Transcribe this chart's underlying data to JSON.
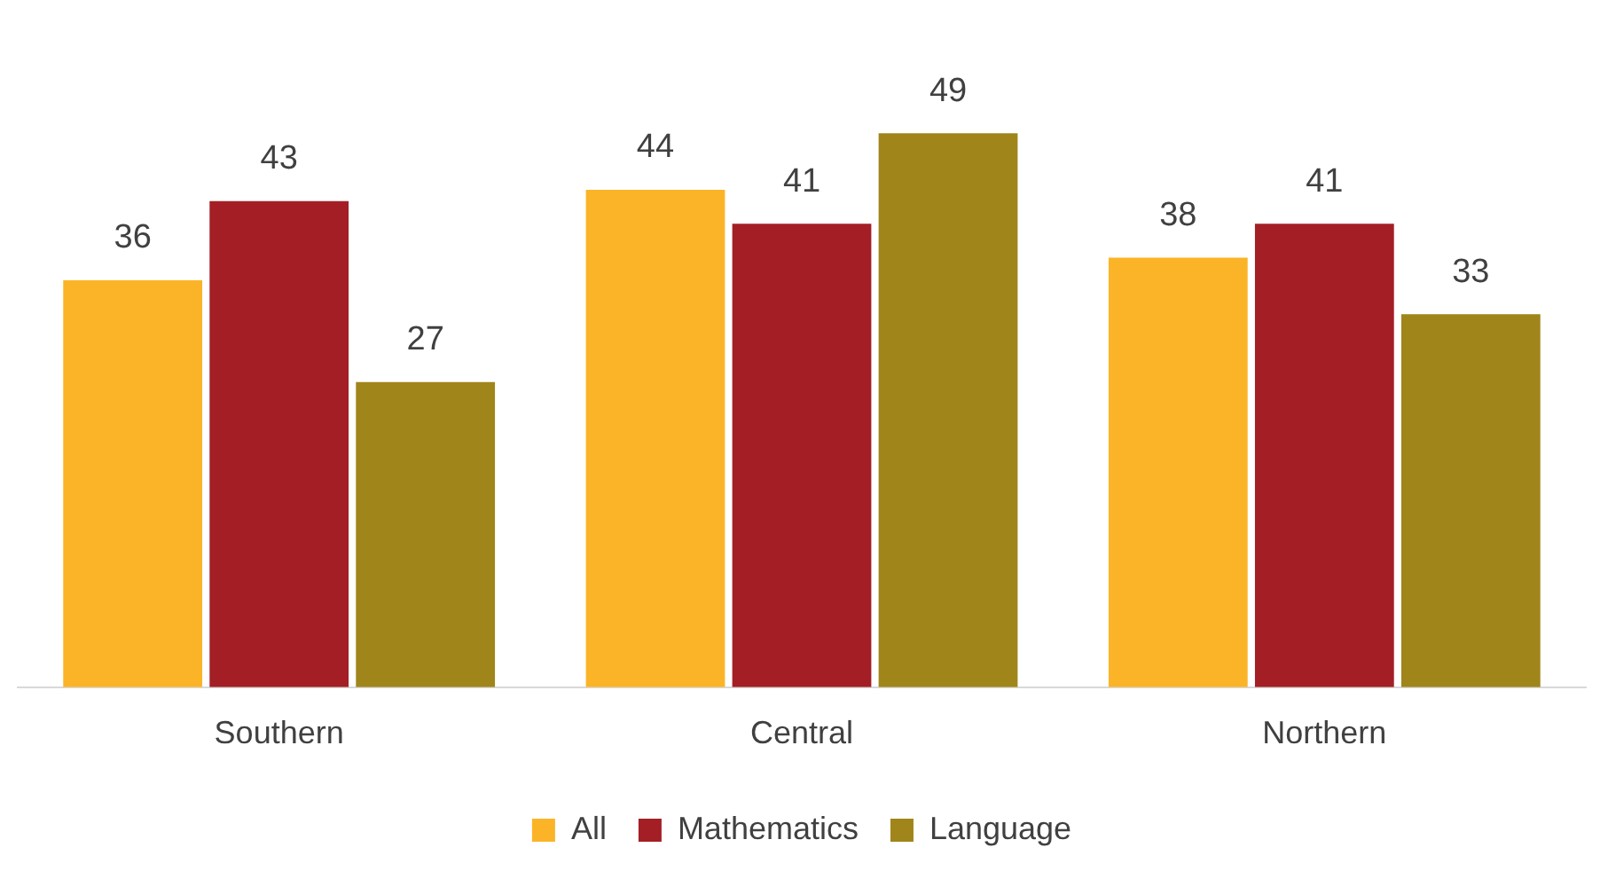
{
  "chart_data": {
    "type": "bar",
    "categories": [
      "Southern",
      "Central",
      "Northern"
    ],
    "series": [
      {
        "name": "All",
        "color": "#fbb427",
        "values": [
          36,
          44,
          38
        ]
      },
      {
        "name": "Mathematics",
        "color": "#a31f25",
        "values": [
          43,
          41,
          41
        ]
      },
      {
        "name": "Language",
        "color": "#a0851a",
        "values": [
          27,
          49,
          33
        ]
      }
    ],
    "data_labels": true,
    "legend": "bottom",
    "grid": false,
    "tick_labels": "x"
  }
}
